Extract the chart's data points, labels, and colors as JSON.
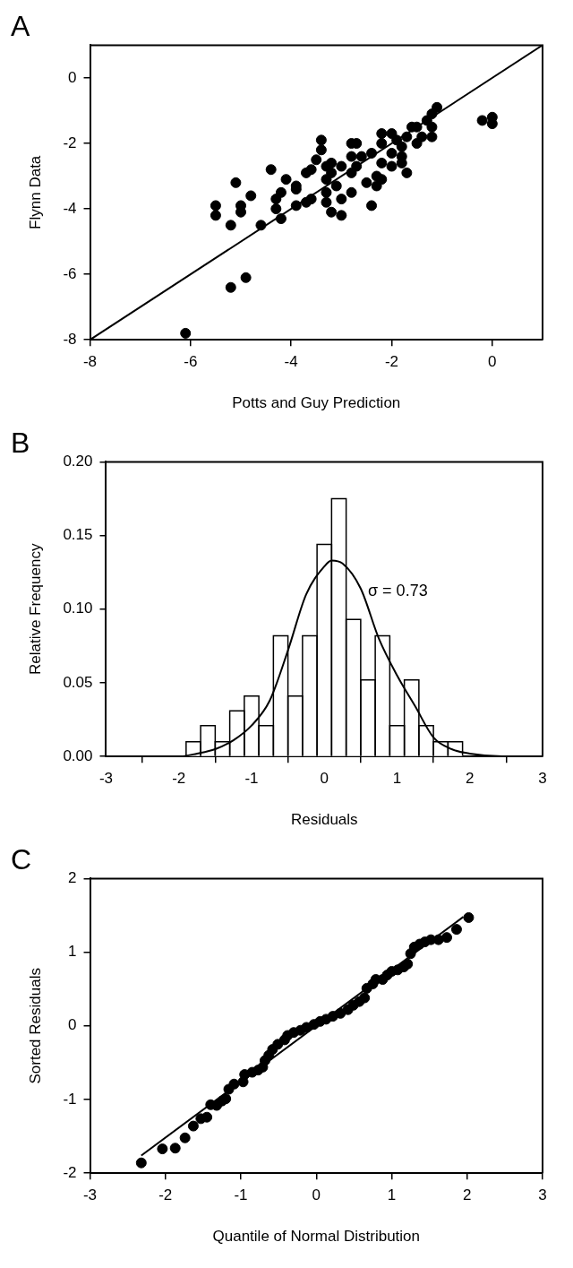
{
  "chart_data": [
    {
      "type": "scatter",
      "title": "A",
      "xlabel": "Potts and Guy Prediction",
      "ylabel": "Flynn Data",
      "xlim": [
        -8,
        1
      ],
      "xticks": [
        -8,
        -6,
        -4,
        -2,
        0
      ],
      "ylim": [
        -8,
        1
      ],
      "yticks": [
        -8,
        -6,
        -4,
        -2,
        0
      ],
      "series": [
        {
          "marker": "circle",
          "color": "#000000",
          "x": [
            -6.1,
            -5.2,
            -4.9,
            -5.5,
            -5.5,
            -5.2,
            -5.1,
            -5.0,
            -5.0,
            -4.8,
            -4.6,
            -4.4,
            -4.3,
            -4.3,
            -4.2,
            -4.2,
            -4.1,
            -3.9,
            -3.9,
            -3.9,
            -3.7,
            -3.7,
            -3.6,
            -3.6,
            -3.5,
            -3.4,
            -3.4,
            -3.3,
            -3.3,
            -3.3,
            -3.3,
            -3.2,
            -3.2,
            -3.2,
            -3.0,
            -3.1,
            -3.0,
            -3.0,
            -2.8,
            -2.8,
            -2.7,
            -2.8,
            -2.8,
            -2.7,
            -2.6,
            -2.5,
            -2.4,
            -2.4,
            -2.3,
            -2.3,
            -2.2,
            -2.2,
            -2.2,
            -2.2,
            -2.0,
            -2.0,
            -2.0,
            -1.9,
            -1.8,
            -1.8,
            -1.8,
            -1.7,
            -1.7,
            -1.6,
            -1.5,
            -1.5,
            -1.4,
            -1.3,
            -1.2,
            -1.2,
            -1.2,
            -1.1,
            -0.2,
            0.0,
            0.0
          ],
          "values": [
            -7.8,
            -6.4,
            -6.1,
            -3.9,
            -4.2,
            -4.5,
            -3.2,
            -3.9,
            -4.1,
            -3.6,
            -4.5,
            -2.8,
            -3.7,
            -4.0,
            -3.5,
            -4.3,
            -3.1,
            -3.4,
            -3.3,
            -3.9,
            -3.8,
            -2.9,
            -2.8,
            -3.7,
            -2.5,
            -1.9,
            -2.2,
            -2.7,
            -3.1,
            -3.5,
            -3.8,
            -2.6,
            -2.9,
            -4.1,
            -4.2,
            -3.3,
            -3.7,
            -2.7,
            -2.9,
            -2.0,
            -2.0,
            -2.4,
            -3.5,
            -2.7,
            -2.4,
            -3.2,
            -3.9,
            -2.3,
            -3.0,
            -3.3,
            -2.6,
            -1.7,
            -2.0,
            -3.1,
            -2.3,
            -1.7,
            -2.7,
            -1.9,
            -2.1,
            -2.6,
            -2.4,
            -2.9,
            -1.8,
            -1.5,
            -1.5,
            -2.0,
            -1.8,
            -1.3,
            -1.5,
            -1.1,
            -1.8,
            -0.9,
            -1.3,
            -1.4,
            -1.2
          ]
        },
        {
          "type": "line",
          "marker": "none",
          "color": "#000000",
          "x": [
            -8,
            1
          ],
          "values": [
            -8,
            1
          ]
        }
      ]
    },
    {
      "type": "histogram",
      "title": "B",
      "xlabel": "Residuals",
      "ylabel": "Relative Frequency",
      "xlim": [
        -3,
        3
      ],
      "xticks": [
        -3,
        -2,
        -1,
        0,
        1,
        2,
        3
      ],
      "ylim": [
        0,
        0.2
      ],
      "yticks": [
        {
          "value": 0,
          "label": "0.00"
        },
        {
          "value": 0.05,
          "label": "0.05"
        },
        {
          "value": 0.1,
          "label": "0.10"
        },
        {
          "value": 0.15,
          "label": "0.15"
        },
        {
          "value": 0.2,
          "label": "0.20"
        }
      ],
      "color": "#ffffff",
      "bins": [
        -1.9,
        -1.7,
        -1.5,
        -1.3,
        -1.1,
        -0.9,
        -0.7,
        -0.5,
        -0.3,
        -0.1,
        0.1,
        0.3,
        0.5,
        0.7,
        0.9,
        1.1,
        1.3,
        1.5,
        1.7,
        1.9
      ],
      "values": [
        0.01,
        0.021,
        0.01,
        0.031,
        0.041,
        0.021,
        0.082,
        0.041,
        0.082,
        0.144,
        0.175,
        0.093,
        0.052,
        0.082,
        0.021,
        0.052,
        0.021,
        0.01,
        0.01
      ],
      "series": [
        {
          "type": "line",
          "color": "#000000",
          "x": [
            -3,
            -2.5,
            -2,
            -1.75,
            -1.5,
            -1.25,
            -1,
            -0.75,
            -0.5,
            -0.25,
            0,
            0.1,
            0.25,
            0.5,
            0.75,
            1,
            1.25,
            1.5,
            1.75,
            2,
            2.5,
            3
          ],
          "values": [
            0,
            0,
            0.0,
            0.002,
            0.005,
            0.011,
            0.021,
            0.038,
            0.072,
            0.11,
            0.129,
            0.133,
            0.131,
            0.114,
            0.08,
            0.055,
            0.034,
            0.013,
            0.005,
            0.002,
            0,
            0
          ]
        }
      ],
      "annotations": [
        "σ = 0.73"
      ]
    },
    {
      "type": "scatter",
      "title": "C",
      "xlabel": "Quantile of Normal Distribution",
      "ylabel": "Sorted Residuals",
      "xlim": [
        -3,
        3
      ],
      "xticks": [
        -3,
        -2,
        -1,
        0,
        1,
        2,
        3
      ],
      "ylim": [
        -2,
        2
      ],
      "yticks": [
        -2,
        -1,
        0,
        1,
        2
      ],
      "series": [
        {
          "marker": "circle",
          "color": "#000000",
          "x": [
            -2.32,
            -2.04,
            -1.87,
            -1.74,
            -1.63,
            -1.53,
            -1.45,
            -1.4,
            -1.32,
            -1.25,
            -1.2,
            -1.16,
            -1.09,
            -0.97,
            -0.95,
            -0.85,
            -0.77,
            -0.71,
            -0.68,
            -0.63,
            -0.58,
            -0.51,
            -0.42,
            -0.38,
            -0.3,
            -0.21,
            -0.13,
            -0.03,
            0.05,
            0.13,
            0.22,
            0.32,
            0.42,
            0.49,
            0.57,
            0.64,
            0.67,
            0.75,
            0.79,
            0.88,
            0.94,
            1.0,
            1.08,
            1.16,
            1.21,
            1.25,
            1.3,
            1.37,
            1.44,
            1.52,
            1.62,
            1.73,
            1.86,
            2.02
          ],
          "values": [
            -1.86,
            -1.67,
            -1.66,
            -1.52,
            -1.36,
            -1.26,
            -1.24,
            -1.07,
            -1.08,
            -1.02,
            -0.99,
            -0.86,
            -0.79,
            -0.76,
            -0.66,
            -0.63,
            -0.6,
            -0.56,
            -0.47,
            -0.4,
            -0.32,
            -0.25,
            -0.19,
            -0.13,
            -0.09,
            -0.06,
            -0.02,
            0.02,
            0.06,
            0.09,
            0.13,
            0.17,
            0.22,
            0.28,
            0.33,
            0.38,
            0.51,
            0.57,
            0.63,
            0.63,
            0.69,
            0.74,
            0.76,
            0.8,
            0.84,
            0.98,
            1.07,
            1.11,
            1.14,
            1.17,
            1.17,
            1.2,
            1.31,
            1.47
          ]
        },
        {
          "type": "line",
          "marker": "none",
          "color": "#000000",
          "x": [
            -2.32,
            1.95
          ],
          "values": [
            -1.76,
            1.48
          ]
        }
      ]
    }
  ]
}
